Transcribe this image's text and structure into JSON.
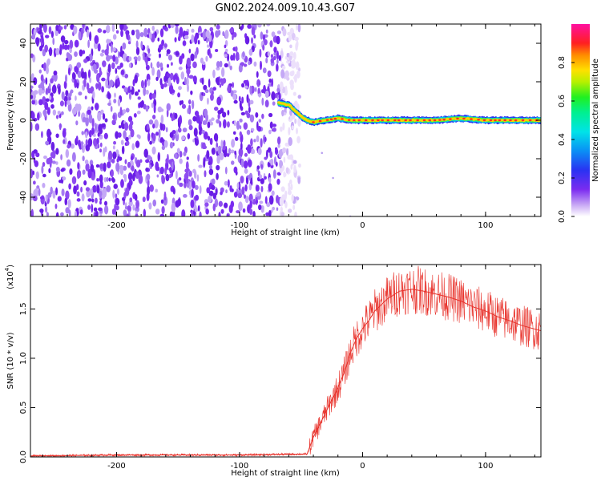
{
  "title": "GN02.2024.009.10.43.G07",
  "colors": {
    "snr_line": "#e8312a",
    "spectrogram_noise": "#6a1ee6",
    "spectrogram_peak": "#ff2a2a"
  },
  "colorbar": {
    "label": "Normalized spectral amplitude",
    "ticks": [
      "0.0",
      "0.2",
      "0.4",
      "0.6",
      "0.8"
    ],
    "colormap": "rainbow (white-violet → blue → cyan → green → yellow → red → magenta)"
  },
  "chart_data": [
    {
      "type": "heatmap",
      "title": "GN02.2024.009.10.43.G07",
      "xlabel": "Height of straight line (km)",
      "ylabel": "Frequency (Hz)",
      "xlim": [
        -270,
        145
      ],
      "ylim": [
        -50,
        50
      ],
      "xticks": [
        -200,
        -100,
        0,
        100
      ],
      "xtick_labels": [
        "-200",
        "-100",
        "0",
        "100"
      ],
      "yticks": [
        -40,
        -20,
        0,
        20,
        40
      ],
      "ytick_labels": [
        "-40",
        "-20",
        "0",
        "20",
        "40"
      ],
      "color_scale": [
        0.0,
        1.0
      ],
      "description_series": {
        "noise_region_x_range": [
          -270,
          -57
        ],
        "signal_track": {
          "x": [
            -68,
            -60,
            -55,
            -50,
            -45,
            -40,
            -30,
            -20,
            -10,
            0,
            20,
            40,
            60,
            80,
            100,
            120,
            145
          ],
          "frequency": [
            9,
            8,
            5,
            2,
            0,
            -1,
            0,
            1,
            0,
            0,
            0,
            0,
            0,
            1,
            0,
            0,
            0
          ]
        }
      }
    },
    {
      "type": "line",
      "xlabel": "Height of straight line (km)",
      "ylabel": "SNR (10 * v/v)",
      "y_multiplier": "(x10",
      "y_multiplier_exp": "4",
      "xlim": [
        -270,
        145
      ],
      "ylim": [
        0,
        1.95
      ],
      "xticks": [
        -200,
        -100,
        0,
        100
      ],
      "xtick_labels": [
        "-200",
        "-100",
        "0",
        "100"
      ],
      "yticks": [
        0.0,
        0.5,
        1.0,
        1.5
      ],
      "ytick_labels": [
        "0.0",
        "0.5",
        "1.0",
        "1.5"
      ],
      "series": [
        {
          "x": [
            -270,
            -200,
            -100,
            -45,
            -40,
            -36,
            -30,
            -25,
            -20,
            -15,
            -10,
            -5,
            0,
            5,
            10,
            20,
            30,
            40,
            50,
            60,
            70,
            80,
            90,
            100,
            110,
            120,
            130,
            145
          ],
          "y": [
            0.01,
            0.02,
            0.02,
            0.03,
            0.2,
            0.3,
            0.45,
            0.58,
            0.7,
            0.85,
            1.05,
            1.2,
            1.3,
            1.38,
            1.48,
            1.6,
            1.68,
            1.7,
            1.68,
            1.65,
            1.62,
            1.58,
            1.52,
            1.48,
            1.42,
            1.38,
            1.33,
            1.28
          ]
        }
      ]
    }
  ]
}
